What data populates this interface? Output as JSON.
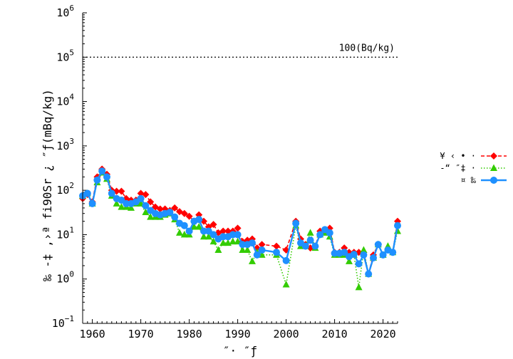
{
  "chart_data": {
    "type": "line",
    "ylabel": "‰ -‡ ,›ª fi90Sr ¿ ″ƒ(mBq/kg)",
    "xlabel": "″· ″ƒ",
    "x_ticks": [
      "1960",
      "1970",
      "1980",
      "1990",
      "2000",
      "2010",
      "2020"
    ],
    "y_ticks": [
      {
        "base": "10",
        "exp": "−1"
      },
      {
        "base": "10",
        "exp": "0"
      },
      {
        "base": "10",
        "exp": "1"
      },
      {
        "base": "10",
        "exp": "2"
      },
      {
        "base": "10",
        "exp": "3"
      },
      {
        "base": "10",
        "exp": "4"
      },
      {
        "base": "10",
        "exp": "5"
      },
      {
        "base": "10",
        "exp": "6"
      }
    ],
    "xlim": [
      1958,
      2023
    ],
    "ylim": [
      0.1,
      1000000
    ],
    "y_scale": "log",
    "legend_position": "right",
    "reference_line": {
      "value": 100000,
      "label": "100(Bq/kg)",
      "style": "dotted"
    },
    "series": [
      {
        "name": "¥ ‹ • ·",
        "color": "#ff0000",
        "marker": "diamond",
        "line": "dashed",
        "x": [
          1958,
          1959,
          1960,
          1961,
          1962,
          1963,
          1964,
          1965,
          1966,
          1967,
          1968,
          1969,
          1970,
          1971,
          1972,
          1973,
          1974,
          1975,
          1976,
          1977,
          1978,
          1979,
          1980,
          1981,
          1982,
          1983,
          1984,
          1985,
          1986,
          1987,
          1988,
          1989,
          1990,
          1991,
          1992,
          1993,
          1994,
          1995,
          1998,
          2000,
          2002,
          2003,
          2004,
          2005,
          2006,
          2007,
          2008,
          2009,
          2010,
          2011,
          2012,
          2013,
          2014,
          2015,
          2016,
          2017,
          2018,
          2019,
          2020,
          2021,
          2022,
          2023
        ],
        "values": [
          65,
          80,
          55,
          200,
          300,
          230,
          100,
          95,
          95,
          65,
          60,
          60,
          85,
          80,
          55,
          42,
          38,
          38,
          35,
          40,
          33,
          30,
          26,
          20,
          28,
          20,
          15,
          17,
          11,
          12,
          12,
          12,
          14,
          7,
          7.5,
          8,
          5,
          6,
          5.5,
          4.5,
          20,
          8,
          6,
          5,
          5.5,
          12,
          13,
          14,
          4,
          4,
          5,
          4,
          4,
          4,
          4,
          1.3,
          3.5,
          6,
          3.5,
          4.5,
          4,
          20
        ]
      },
      {
        "name": "‐“ ″‡ ·",
        "color": "#33cc00",
        "marker": "triangle",
        "line": "dotted",
        "x": [
          1958,
          1959,
          1960,
          1961,
          1962,
          1963,
          1964,
          1965,
          1966,
          1967,
          1968,
          1969,
          1970,
          1971,
          1972,
          1973,
          1974,
          1975,
          1976,
          1977,
          1978,
          1979,
          1980,
          1981,
          1982,
          1983,
          1984,
          1985,
          1986,
          1987,
          1988,
          1989,
          1990,
          1991,
          1992,
          1993,
          1994,
          1995,
          1998,
          2000,
          2002,
          2003,
          2004,
          2005,
          2006,
          2007,
          2008,
          2009,
          2010,
          2011,
          2012,
          2013,
          2014,
          2015,
          2016,
          2017,
          2018,
          2019,
          2020,
          2021,
          2022,
          2023
        ],
        "values": [
          75,
          85,
          50,
          150,
          250,
          180,
          75,
          50,
          42,
          42,
          40,
          50,
          50,
          32,
          25,
          25,
          25,
          28,
          30,
          22,
          11,
          10,
          10,
          15,
          15,
          9,
          9,
          7,
          4.5,
          6.5,
          6.5,
          7,
          7,
          4.5,
          4.5,
          2.5,
          4,
          3.5,
          3.5,
          0.75,
          16,
          5.5,
          5.5,
          11,
          5,
          10,
          11,
          9,
          3.5,
          3.5,
          3.5,
          2.5,
          3.5,
          0.65,
          4.5,
          1.3,
          3,
          6,
          3.5,
          5.5,
          4,
          12
        ]
      },
      {
        "name": "¤ ‰",
        "color": "#1e90ff",
        "marker": "circle",
        "line": "solid",
        "x": [
          1958,
          1959,
          1960,
          1961,
          1962,
          1963,
          1964,
          1965,
          1966,
          1967,
          1968,
          1969,
          1970,
          1971,
          1972,
          1973,
          1974,
          1975,
          1976,
          1977,
          1978,
          1979,
          1980,
          1981,
          1982,
          1983,
          1984,
          1985,
          1986,
          1987,
          1988,
          1989,
          1990,
          1991,
          1992,
          1993,
          1994,
          1995,
          1998,
          2000,
          2002,
          2003,
          2004,
          2005,
          2006,
          2007,
          2008,
          2009,
          2010,
          2011,
          2012,
          2013,
          2014,
          2015,
          2016,
          2017,
          2018,
          2019,
          2020,
          2021,
          2022,
          2023
        ],
        "values": [
          75,
          85,
          50,
          170,
          270,
          200,
          85,
          65,
          60,
          50,
          50,
          55,
          65,
          45,
          35,
          30,
          28,
          30,
          32,
          25,
          18,
          16,
          12,
          20,
          22,
          12,
          12,
          10,
          8,
          9,
          9,
          10,
          10,
          6,
          6,
          6.5,
          3.5,
          4.5,
          4,
          2.6,
          18,
          6.5,
          5.5,
          7.5,
          5.5,
          10,
          13,
          11,
          3.8,
          3.8,
          4,
          3.2,
          3.6,
          2.2,
          3.5,
          1.3,
          3,
          6,
          3.5,
          4.5,
          4,
          16
        ]
      }
    ]
  }
}
